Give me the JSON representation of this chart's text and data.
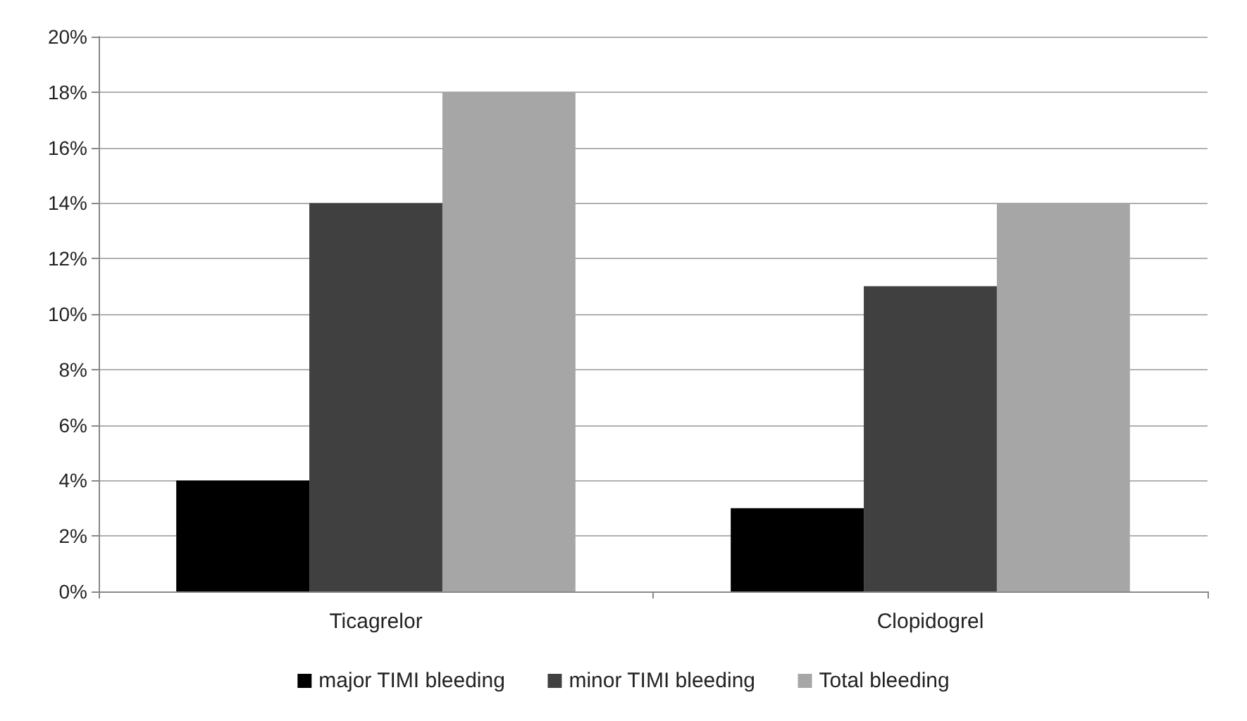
{
  "chart_data": {
    "type": "bar",
    "categories": [
      "Ticagrelor",
      "Clopidogrel"
    ],
    "series": [
      {
        "name": "major TIMI bleeding",
        "color": "#000000",
        "values": [
          4,
          3
        ]
      },
      {
        "name": "minor TIMI bleeding",
        "color": "#404040",
        "values": [
          14,
          11
        ]
      },
      {
        "name": "Total bleeding",
        "color": "#a6a6a6",
        "values": [
          18,
          14
        ]
      }
    ],
    "ylim": [
      0,
      20
    ],
    "yticks": [
      {
        "value": 0,
        "label": "0%"
      },
      {
        "value": 2,
        "label": "2%"
      },
      {
        "value": 4,
        "label": "4%"
      },
      {
        "value": 6,
        "label": "6%"
      },
      {
        "value": 8,
        "label": "8%"
      },
      {
        "value": 10,
        "label": "10%"
      },
      {
        "value": 12,
        "label": "12%"
      },
      {
        "value": 14,
        "label": "14%"
      },
      {
        "value": 16,
        "label": "16%"
      },
      {
        "value": 18,
        "label": "18%"
      },
      {
        "value": 20,
        "label": "20%"
      }
    ],
    "grid": "y",
    "legend": "bottom"
  }
}
